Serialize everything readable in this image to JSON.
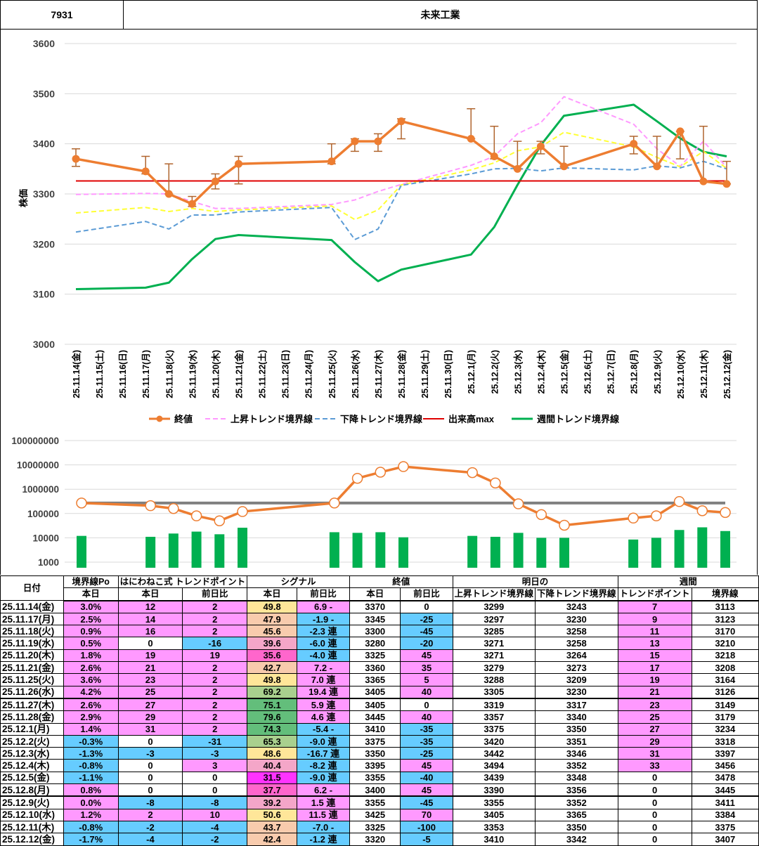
{
  "header": {
    "code": "7931",
    "name": "未来工業"
  },
  "colors": {
    "close": "#ED7D31",
    "uptrend": "#FF99FF",
    "downtrend": "#5B9BD5",
    "volmax": "#E00000",
    "weekly": "#00B050",
    "yellow": "#FFFF33",
    "pink": "#FF99FF",
    "blue": "#66CCFF",
    "magenta": "#FF33FF",
    "green": "#66BB6A",
    "lightgreen": "#A9D08E",
    "gold": "#FFE699",
    "orange_light": "#F8CBAD",
    "pink_dark": "#FF66CC"
  },
  "chart_data": [
    {
      "type": "line",
      "ylabel": "株価",
      "ylim": [
        3000,
        3600
      ],
      "yticks": [
        3000,
        3100,
        3200,
        3300,
        3400,
        3500,
        3600
      ],
      "categories": [
        "25.11.14(金)",
        "25.11.15(土)",
        "25.11.16(日)",
        "25.11.17(月)",
        "25.11.18(火)",
        "25.11.19(水)",
        "25.11.20(木)",
        "25.11.21(金)",
        "25.11.22(土)",
        "25.11.23(日)",
        "25.11.24(月)",
        "25.11.25(火)",
        "25.11.26(水)",
        "25.11.27(木)",
        "25.11.28(金)",
        "25.11.29(土)",
        "25.11.30(日)",
        "25.12.1(月)",
        "25.12.2(火)",
        "25.12.3(水)",
        "25.12.4(木)",
        "25.12.5(金)",
        "25.12.6(土)",
        "25.12.7(日)",
        "25.12.8(月)",
        "25.12.9(火)",
        "25.12.10(水)",
        "25.12.11(木)",
        "25.12.12(金)"
      ],
      "series": [
        {
          "name": "終値",
          "x": [
            0,
            3,
            4,
            5,
            6,
            7,
            11,
            12,
            13,
            14,
            17,
            18,
            19,
            20,
            21,
            24,
            25,
            26,
            27,
            28
          ],
          "values": [
            3370,
            3345,
            3300,
            3280,
            3325,
            3360,
            3365,
            3405,
            3405,
            3445,
            3410,
            3375,
            3350,
            3395,
            3355,
            3400,
            3355,
            3425,
            3325,
            3320
          ],
          "hi": [
            3390,
            3375,
            3360,
            3295,
            3340,
            3375,
            3400,
            3410,
            3420,
            3450,
            3470,
            3435,
            3405,
            3405,
            3395,
            3415,
            3415,
            3425,
            3435,
            3365
          ],
          "lo": [
            3355,
            3340,
            3300,
            3275,
            3310,
            3320,
            3360,
            3385,
            3385,
            3410,
            3410,
            3370,
            3350,
            3380,
            3355,
            3380,
            3355,
            3370,
            3325,
            3320
          ]
        },
        {
          "name": "上昇トレンド境界線",
          "x": [
            0,
            3,
            4,
            5,
            6,
            7,
            11,
            12,
            13,
            14,
            17,
            18,
            19,
            20,
            21,
            24,
            25,
            26,
            27,
            28
          ],
          "values": [
            3299,
            3301,
            3300,
            3285,
            3271,
            3271,
            3279,
            3288,
            3305,
            3319,
            3357,
            3375,
            3420,
            3442,
            3494,
            3439,
            3390,
            3355,
            3405,
            3353
          ]
        },
        {
          "name": "下降トレンド境界線",
          "x": [
            0,
            3,
            4,
            5,
            6,
            7,
            11,
            12,
            13,
            14,
            17,
            18,
            19,
            20,
            21,
            24,
            25,
            26,
            27,
            28
          ],
          "values": [
            3224,
            3245,
            3230,
            3258,
            3258,
            3264,
            3273,
            3209,
            3230,
            3317,
            3340,
            3350,
            3351,
            3346,
            3352,
            3348,
            3356,
            3352,
            3365,
            3350
          ]
        },
        {
          "name": "yellow",
          "x": [
            0,
            3,
            4,
            5,
            6,
            7,
            11,
            12,
            13,
            14,
            17,
            18,
            19,
            20,
            21,
            24,
            25,
            26,
            27,
            28
          ],
          "values": [
            3262,
            3273,
            3265,
            3271,
            3265,
            3268,
            3276,
            3249,
            3268,
            3318,
            3348,
            3362,
            3386,
            3394,
            3423,
            3394,
            3373,
            3354,
            3385,
            3351
          ]
        },
        {
          "name": "出来高max",
          "x": [
            0,
            28
          ],
          "values": [
            3326,
            3326
          ]
        },
        {
          "name": "週間トレンド境界線",
          "x": [
            0,
            3,
            4,
            5,
            6,
            7,
            11,
            12,
            13,
            14,
            17,
            18,
            19,
            20,
            21,
            24,
            25,
            26,
            27,
            28
          ],
          "values": [
            3110,
            3113,
            3123,
            3170,
            3210,
            3218,
            3208,
            3164,
            3126,
            3149,
            3179,
            3234,
            3318,
            3397,
            3456,
            3478,
            3445,
            3411,
            3384,
            3375
          ]
        }
      ],
      "legend": [
        "終値",
        "上昇トレンド境界線",
        "下降トレンド境界線",
        "出来高max",
        "週間トレンド境界線"
      ]
    },
    {
      "type": "bar",
      "scale": "log",
      "yticks": [
        "100000000",
        "10000000",
        "1000000",
        "100000",
        "10000",
        "1000"
      ],
      "x": [
        0,
        3,
        4,
        5,
        6,
        7,
        11,
        12,
        13,
        14,
        17,
        18,
        19,
        20,
        21,
        24,
        25,
        26,
        27,
        28
      ],
      "bars": [
        12000,
        11000,
        15000,
        18000,
        14000,
        26000,
        17000,
        16000,
        17000,
        10500,
        12000,
        11000,
        16000,
        10000,
        10000,
        8500,
        10000,
        21000,
        27000,
        19000
      ],
      "line": [
        270000,
        210000,
        160000,
        80000,
        50000,
        120000,
        270000,
        2800000,
        5000000,
        8500000,
        4800000,
        1800000,
        250000,
        90000,
        33000,
        65000,
        80000,
        310000,
        130000,
        110000
      ],
      "threshold": 270000
    }
  ],
  "table": {
    "head1": [
      "日付",
      "境界線Po",
      "はにわねこ式 トレンドポイント",
      "シグナル",
      "終値",
      "明日の",
      "週間"
    ],
    "head2": [
      "本日",
      "本日",
      "前日比",
      "本日",
      "前日比",
      "本日",
      "前日比",
      "上昇トレンド境界線",
      "下降トレンド境界線",
      "トレンドポイント",
      "境界線"
    ],
    "rows": [
      {
        "date": "25.11.14(金)",
        "po": "3.0%",
        "tp": "12",
        "tpd": "2",
        "sig": "49.8",
        "sigd": "6.9",
        "mark": "-",
        "close": "3370",
        "cd": "0",
        "up": "3299",
        "down": "3243",
        "wtp": "7",
        "wline": "3113"
      },
      {
        "date": "25.11.17(月)",
        "po": "2.5%",
        "tp": "14",
        "tpd": "2",
        "sig": "47.9",
        "sigd": "-1.9",
        "mark": "-",
        "close": "3345",
        "cd": "-25",
        "up": "3297",
        "down": "3230",
        "wtp": "9",
        "wline": "3123"
      },
      {
        "date": "25.11.18(火)",
        "po": "0.9%",
        "tp": "16",
        "tpd": "2",
        "sig": "45.6",
        "sigd": "-2.3",
        "mark": "連",
        "close": "3300",
        "cd": "-45",
        "up": "3285",
        "down": "3258",
        "wtp": "11",
        "wline": "3170"
      },
      {
        "date": "25.11.19(水)",
        "po": "0.5%",
        "tp": "0",
        "tpd": "-16",
        "sig": "39.6",
        "sigd": "-6.0",
        "mark": "連",
        "close": "3280",
        "cd": "-20",
        "up": "3271",
        "down": "3258",
        "wtp": "13",
        "wline": "3210"
      },
      {
        "date": "25.11.20(木)",
        "po": "1.8%",
        "tp": "19",
        "tpd": "19",
        "sig": "35.6",
        "sigd": "-4.0",
        "mark": "連",
        "close": "3325",
        "cd": "45",
        "up": "3271",
        "down": "3264",
        "wtp": "15",
        "wline": "3218"
      },
      {
        "date": "25.11.21(金)",
        "po": "2.6%",
        "tp": "21",
        "tpd": "2",
        "sig": "42.7",
        "sigd": "7.2",
        "mark": "-",
        "close": "3360",
        "cd": "35",
        "up": "3279",
        "down": "3273",
        "wtp": "17",
        "wline": "3208"
      },
      {
        "date": "25.11.25(火)",
        "po": "3.6%",
        "tp": "23",
        "tpd": "2",
        "sig": "49.8",
        "sigd": "7.0",
        "mark": "連",
        "close": "3365",
        "cd": "5",
        "up": "3288",
        "down": "3209",
        "wtp": "19",
        "wline": "3164"
      },
      {
        "date": "25.11.26(水)",
        "po": "4.2%",
        "tp": "25",
        "tpd": "2",
        "sig": "69.2",
        "sigd": "19.4",
        "mark": "連",
        "close": "3405",
        "cd": "40",
        "up": "3305",
        "down": "3230",
        "wtp": "21",
        "wline": "3126"
      },
      {
        "date": "25.11.27(木)",
        "po": "2.6%",
        "tp": "27",
        "tpd": "2",
        "sig": "75.1",
        "sigd": "5.9",
        "mark": "連",
        "close": "3405",
        "cd": "0",
        "up": "3319",
        "down": "3317",
        "wtp": "23",
        "wline": "3149"
      },
      {
        "date": "25.11.28(金)",
        "po": "2.9%",
        "tp": "29",
        "tpd": "2",
        "sig": "79.6",
        "sigd": "4.6",
        "mark": "連",
        "close": "3445",
        "cd": "40",
        "up": "3357",
        "down": "3340",
        "wtp": "25",
        "wline": "3179"
      },
      {
        "date": "25.12.1(月)",
        "po": "1.4%",
        "tp": "31",
        "tpd": "2",
        "sig": "74.3",
        "sigd": "-5.4",
        "mark": "-",
        "close": "3410",
        "cd": "-35",
        "up": "3375",
        "down": "3350",
        "wtp": "27",
        "wline": "3234"
      },
      {
        "date": "25.12.2(火)",
        "po": "-0.3%",
        "tp": "0",
        "tpd": "-31",
        "sig": "65.3",
        "sigd": "-9.0",
        "mark": "連",
        "close": "3375",
        "cd": "-35",
        "up": "3420",
        "down": "3351",
        "wtp": "29",
        "wline": "3318"
      },
      {
        "date": "25.12.3(水)",
        "po": "-1.3%",
        "tp": "-3",
        "tpd": "-3",
        "sig": "48.6",
        "sigd": "-16.7",
        "mark": "連",
        "close": "3350",
        "cd": "-25",
        "up": "3442",
        "down": "3346",
        "wtp": "31",
        "wline": "3397"
      },
      {
        "date": "25.12.4(木)",
        "po": "-0.8%",
        "tp": "0",
        "tpd": "3",
        "sig": "40.4",
        "sigd": "-8.2",
        "mark": "連",
        "close": "3395",
        "cd": "45",
        "up": "3494",
        "down": "3352",
        "wtp": "33",
        "wline": "3456"
      },
      {
        "date": "25.12.5(金)",
        "po": "-1.1%",
        "tp": "0",
        "tpd": "0",
        "sig": "31.5",
        "sigd": "-9.0",
        "mark": "連",
        "close": "3355",
        "cd": "-40",
        "up": "3439",
        "down": "3348",
        "wtp": "0",
        "wline": "3478"
      },
      {
        "date": "25.12.8(月)",
        "po": "0.8%",
        "tp": "0",
        "tpd": "0",
        "sig": "37.7",
        "sigd": "6.2",
        "mark": "-",
        "close": "3400",
        "cd": "45",
        "up": "3390",
        "down": "3356",
        "wtp": "0",
        "wline": "3445"
      },
      {
        "date": "25.12.9(火)",
        "po": "0.0%",
        "tp": "-8",
        "tpd": "-8",
        "sig": "39.2",
        "sigd": "1.5",
        "mark": "連",
        "close": "3355",
        "cd": "-45",
        "up": "3355",
        "down": "3352",
        "wtp": "0",
        "wline": "3411"
      },
      {
        "date": "25.12.10(水)",
        "po": "1.2%",
        "tp": "2",
        "tpd": "10",
        "sig": "50.6",
        "sigd": "11.5",
        "mark": "連",
        "close": "3425",
        "cd": "70",
        "up": "3405",
        "down": "3365",
        "wtp": "0",
        "wline": "3384"
      },
      {
        "date": "25.12.11(木)",
        "po": "-0.8%",
        "tp": "-2",
        "tpd": "-4",
        "sig": "43.7",
        "sigd": "-7.0",
        "mark": "-",
        "close": "3325",
        "cd": "-100",
        "up": "3353",
        "down": "3350",
        "wtp": "0",
        "wline": "3375"
      },
      {
        "date": "25.12.12(金)",
        "po": "-1.7%",
        "tp": "-4",
        "tpd": "-2",
        "sig": "42.4",
        "sigd": "-1.2",
        "mark": "連",
        "close": "3320",
        "cd": "-5",
        "up": "3410",
        "down": "3342",
        "wtp": "0",
        "wline": "3407"
      }
    ]
  }
}
